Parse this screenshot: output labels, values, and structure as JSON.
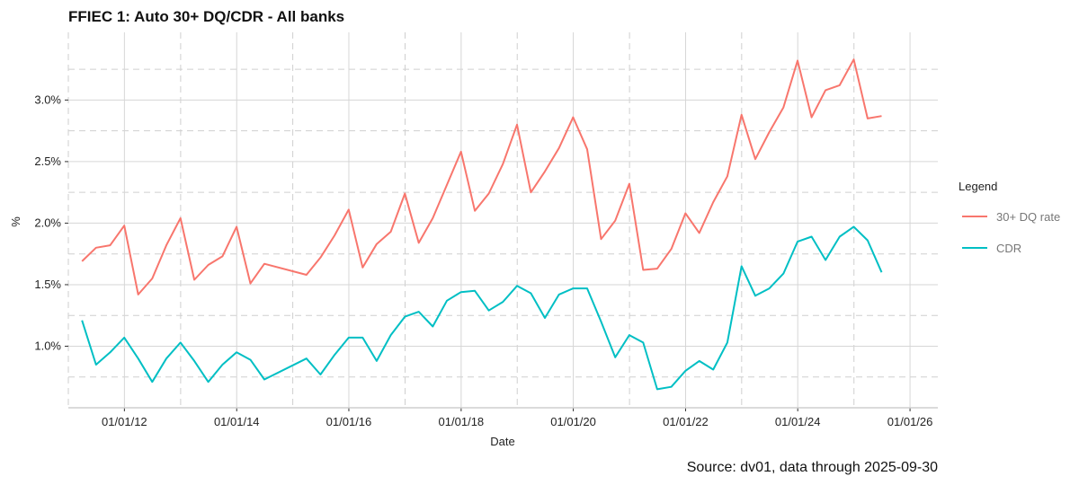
{
  "chart_data": {
    "type": "line",
    "title": "FFIEC 1: Auto 30+ DQ/CDR - All banks",
    "xlabel": "Date",
    "ylabel": "%",
    "caption": "Source: dv01, data through 2025-09-30",
    "legend": {
      "title": "Legend",
      "placement": "right"
    },
    "xlim": [
      "2011-01-01",
      "2026-07-01"
    ],
    "ylim": [
      0.5,
      3.55
    ],
    "x_ticks": [
      {
        "date": "2012-01-01",
        "label": "01/01/12"
      },
      {
        "date": "2014-01-01",
        "label": "01/01/14"
      },
      {
        "date": "2016-01-01",
        "label": "01/01/16"
      },
      {
        "date": "2018-01-01",
        "label": "01/01/18"
      },
      {
        "date": "2020-01-01",
        "label": "01/01/20"
      },
      {
        "date": "2022-01-01",
        "label": "01/01/22"
      },
      {
        "date": "2024-01-01",
        "label": "01/01/24"
      },
      {
        "date": "2026-01-01",
        "label": "01/01/26"
      }
    ],
    "y_ticks": [
      {
        "value": 1.0,
        "label": "1.0%"
      },
      {
        "value": 1.5,
        "label": "1.5%"
      },
      {
        "value": 2.0,
        "label": "2.0%"
      },
      {
        "value": 2.5,
        "label": "2.5%"
      },
      {
        "value": 3.0,
        "label": "3.0%"
      }
    ],
    "grid": true,
    "x": [
      "2011-03-31",
      "2011-06-30",
      "2011-09-30",
      "2011-12-31",
      "2012-03-31",
      "2012-06-30",
      "2012-09-30",
      "2012-12-31",
      "2013-03-31",
      "2013-06-30",
      "2013-09-30",
      "2013-12-31",
      "2014-03-31",
      "2014-06-30",
      "2015-03-31",
      "2015-06-30",
      "2015-09-30",
      "2015-12-31",
      "2016-03-31",
      "2016-06-30",
      "2016-09-30",
      "2016-12-31",
      "2017-03-31",
      "2017-06-30",
      "2017-09-30",
      "2017-12-31",
      "2018-03-31",
      "2018-06-30",
      "2018-09-30",
      "2018-12-31",
      "2019-03-31",
      "2019-06-30",
      "2019-09-30",
      "2019-12-31",
      "2020-03-31",
      "2020-06-30",
      "2020-09-30",
      "2020-12-31",
      "2021-03-31",
      "2021-06-30",
      "2021-09-30",
      "2021-12-31",
      "2022-03-31",
      "2022-06-30",
      "2022-09-30",
      "2022-12-31",
      "2023-03-31",
      "2023-06-30",
      "2023-09-30",
      "2023-12-31",
      "2024-03-31",
      "2024-06-30",
      "2024-09-30",
      "2024-12-31",
      "2025-03-31",
      "2025-06-30"
    ],
    "series": [
      {
        "name": "30+ DQ rate",
        "color": "#F8766D",
        "values": [
          1.69,
          1.8,
          1.82,
          1.98,
          1.42,
          1.55,
          1.82,
          2.04,
          1.54,
          1.66,
          1.73,
          1.97,
          1.51,
          1.67,
          1.58,
          1.72,
          1.9,
          2.11,
          1.64,
          1.83,
          1.93,
          2.24,
          1.84,
          2.04,
          2.31,
          2.58,
          2.1,
          2.24,
          2.48,
          2.8,
          2.25,
          2.42,
          2.61,
          2.86,
          2.6,
          1.87,
          2.02,
          2.32,
          1.62,
          1.63,
          1.79,
          2.08,
          1.92,
          2.17,
          2.38,
          2.88,
          2.52,
          2.74,
          2.94,
          3.32,
          2.86,
          3.08,
          3.12,
          3.33,
          2.85,
          2.87
        ]
      },
      {
        "name": "CDR",
        "color": "#00BFC4",
        "values": [
          1.21,
          0.85,
          0.95,
          1.07,
          0.9,
          0.71,
          0.9,
          1.03,
          0.88,
          0.71,
          0.85,
          0.95,
          0.89,
          0.73,
          0.9,
          0.77,
          0.93,
          1.07,
          1.07,
          0.88,
          1.09,
          1.24,
          1.28,
          1.16,
          1.37,
          1.44,
          1.45,
          1.29,
          1.36,
          1.49,
          1.43,
          1.23,
          1.42,
          1.47,
          1.47,
          1.2,
          0.91,
          1.09,
          1.03,
          0.65,
          0.67,
          0.8,
          0.88,
          0.81,
          1.03,
          1.65,
          1.41,
          1.47,
          1.59,
          1.85,
          1.89,
          1.7,
          1.89,
          1.97,
          1.86,
          1.6
        ]
      }
    ]
  }
}
